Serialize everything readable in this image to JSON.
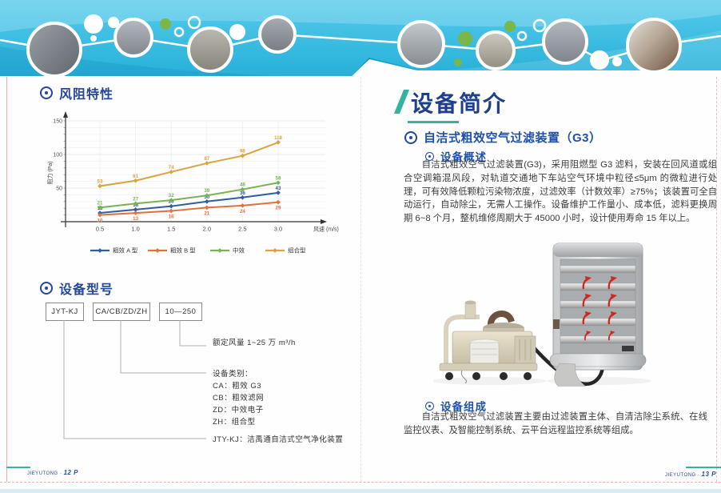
{
  "left_page": {
    "resistance_section_title": "风阻特性",
    "model_section_title": "设备型号",
    "model_diagram": {
      "boxes": [
        "JYT-KJ",
        "CA/CB/ZD/ZH",
        "10—250"
      ],
      "airflow_note": "额定风量 1~25 万 m³/h",
      "category_heading": "设备类别：",
      "categories": [
        "CA：粗效 G3",
        "CB：粗效滤网",
        "ZD：中效电子",
        "ZH：组合型"
      ],
      "model_note": "JTY-KJ：洁禹通自洁式空气净化装置"
    },
    "page_footer": "JIEYUTONG · ",
    "page_number": "12 P"
  },
  "right_page": {
    "page_title": "设备简介",
    "device_title": "自洁式粗效空气过滤装置（G3）",
    "overview_heading": "设备概述",
    "overview_text": "自洁式粗效空气过滤装置(G3)，采用阻燃型 G3 滤料，安装在回风道或组合空调箱混风段，对轨道交通地下车站空气环境中粒径≤5μm 的微粒进行处理，可有效降低颗粒污染物浓度，过滤效率（计数效率）≥75%；该装置可全自动运行，自动除尘，无需人工操作。设备维护工作量小、成本低，滤料更换周期 6~8 个月，整机维修周期大于 45000 小时，设计使用寿命 15 年以上。",
    "composition_heading": "设备组成",
    "composition_text": "自洁式粗效空气过滤装置主要由过滤装置主体、自清洁除尘系统、在线监控仪表、及智能控制系统、云平台远程监控系统等组成。",
    "page_footer": "JIEYUTONG · ",
    "page_number": "13 P"
  },
  "chart_data": {
    "type": "line",
    "title": "风阻特性",
    "x": [
      0.5,
      1.0,
      1.5,
      2.0,
      2.5,
      3.0
    ],
    "xlabel": "风速 (m/s)",
    "ylabel": "阻力 (Pa)",
    "ylim": [
      0,
      160
    ],
    "yticks": [
      50,
      100,
      150
    ],
    "grid": true,
    "legend_position": "bottom",
    "series": [
      {
        "name": "粗效 A 型",
        "color": "#2f5e9e",
        "values": [
          13,
          18,
          23,
          30,
          36,
          43
        ]
      },
      {
        "name": "粗效 B 型",
        "color": "#e2703c",
        "values": [
          10,
          13,
          16,
          21,
          24,
          29
        ]
      },
      {
        "name": "中效",
        "color": "#78b352",
        "values": [
          21,
          27,
          32,
          39,
          48,
          58
        ]
      },
      {
        "name": "组合型",
        "color": "#d7a43e",
        "values": [
          53,
          61,
          74,
          87,
          98,
          118
        ]
      }
    ]
  },
  "icons": {
    "section_bullet": "circled-dot",
    "subsection_bullet": "circled-dot-small",
    "title_slash": "teal-slash",
    "panel_airflow_arrows": "curved-red-up-arrows"
  },
  "colors": {
    "banner_blue": "#35bce2",
    "heading_navy": "#24479a",
    "heading_blue": "#1e52a8",
    "teal_accent": "#35b3a2",
    "body_text": "#3b3b3b",
    "crop_mark_red": "#f0a8a8",
    "green_dot": "#7ab648"
  }
}
